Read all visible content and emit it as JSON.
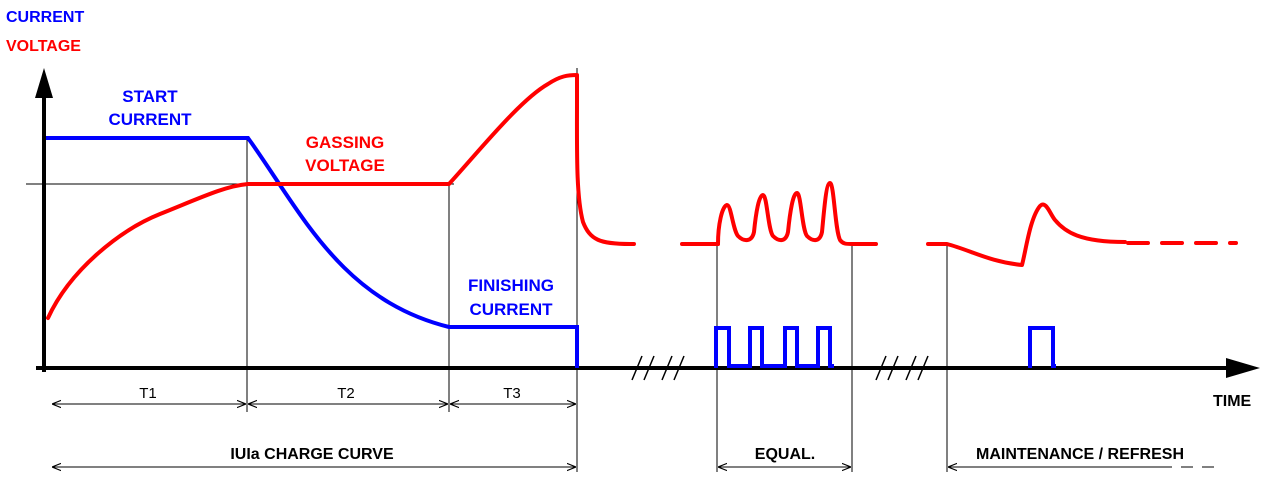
{
  "axis_labels": {
    "current": "CURRENT",
    "voltage": "VOLTAGE",
    "time": "TIME"
  },
  "curve_labels": {
    "start_current": [
      "START",
      "CURRENT"
    ],
    "gassing_voltage": [
      "GASSING",
      "VOLTAGE"
    ],
    "finishing_current": [
      "FINISHING",
      "CURRENT"
    ]
  },
  "phase_labels": {
    "t1": "T1",
    "t2": "T2",
    "t3": "T3",
    "charge_curve": "IUIa CHARGE CURVE",
    "equalization": "EQUAL.",
    "maintenance": "MAINTENANCE / REFRESH"
  },
  "colors": {
    "current": "#0000ff",
    "voltage": "#ff0000",
    "axis": "#000000"
  }
}
